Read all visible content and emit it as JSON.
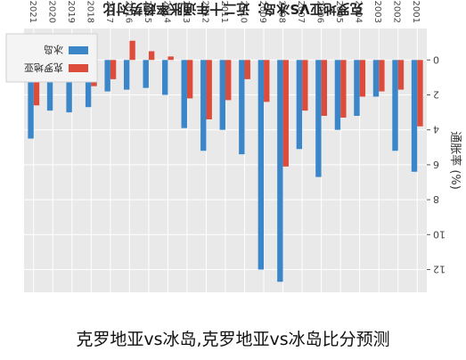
{
  "caption": "克罗地亚vs冰岛,克罗地亚vs冰岛比分预测",
  "chart_data": {
    "type": "bar",
    "title": "克罗地亚VS冰岛：近二十年通胀率趋势对比",
    "ylabel": "通胀率 (%)",
    "xlabel": "",
    "categories": [
      "2001",
      "2002",
      "2003",
      "2004",
      "2005",
      "2006",
      "2007",
      "2008",
      "2009",
      "2010",
      "2011",
      "2012",
      "2013",
      "2014",
      "2015",
      "2016",
      "2017",
      "2018",
      "2019",
      "2020",
      "2021"
    ],
    "series": [
      {
        "name": "克罗地亚",
        "color": "#dd4b3a",
        "values": [
          3.8,
          1.7,
          1.8,
          2.1,
          3.3,
          3.2,
          2.9,
          6.1,
          2.4,
          1.1,
          2.3,
          3.4,
          2.2,
          -0.2,
          -0.5,
          -1.1,
          1.1,
          1.5,
          0.8,
          0.1,
          2.6
        ]
      },
      {
        "name": "冰岛",
        "color": "#3a86c8",
        "values": [
          6.4,
          5.2,
          2.1,
          3.2,
          4.0,
          6.7,
          5.1,
          12.7,
          12.0,
          5.4,
          4.0,
          5.2,
          3.9,
          2.0,
          1.6,
          1.7,
          1.8,
          2.7,
          3.0,
          2.9,
          4.5
        ]
      }
    ],
    "ylim": [
      -1.8,
      13.3
    ],
    "yticks": [
      0,
      2,
      4,
      6,
      8,
      10,
      12
    ],
    "grid": true,
    "legend_position": "top-left",
    "orientation": "rotated-180"
  }
}
